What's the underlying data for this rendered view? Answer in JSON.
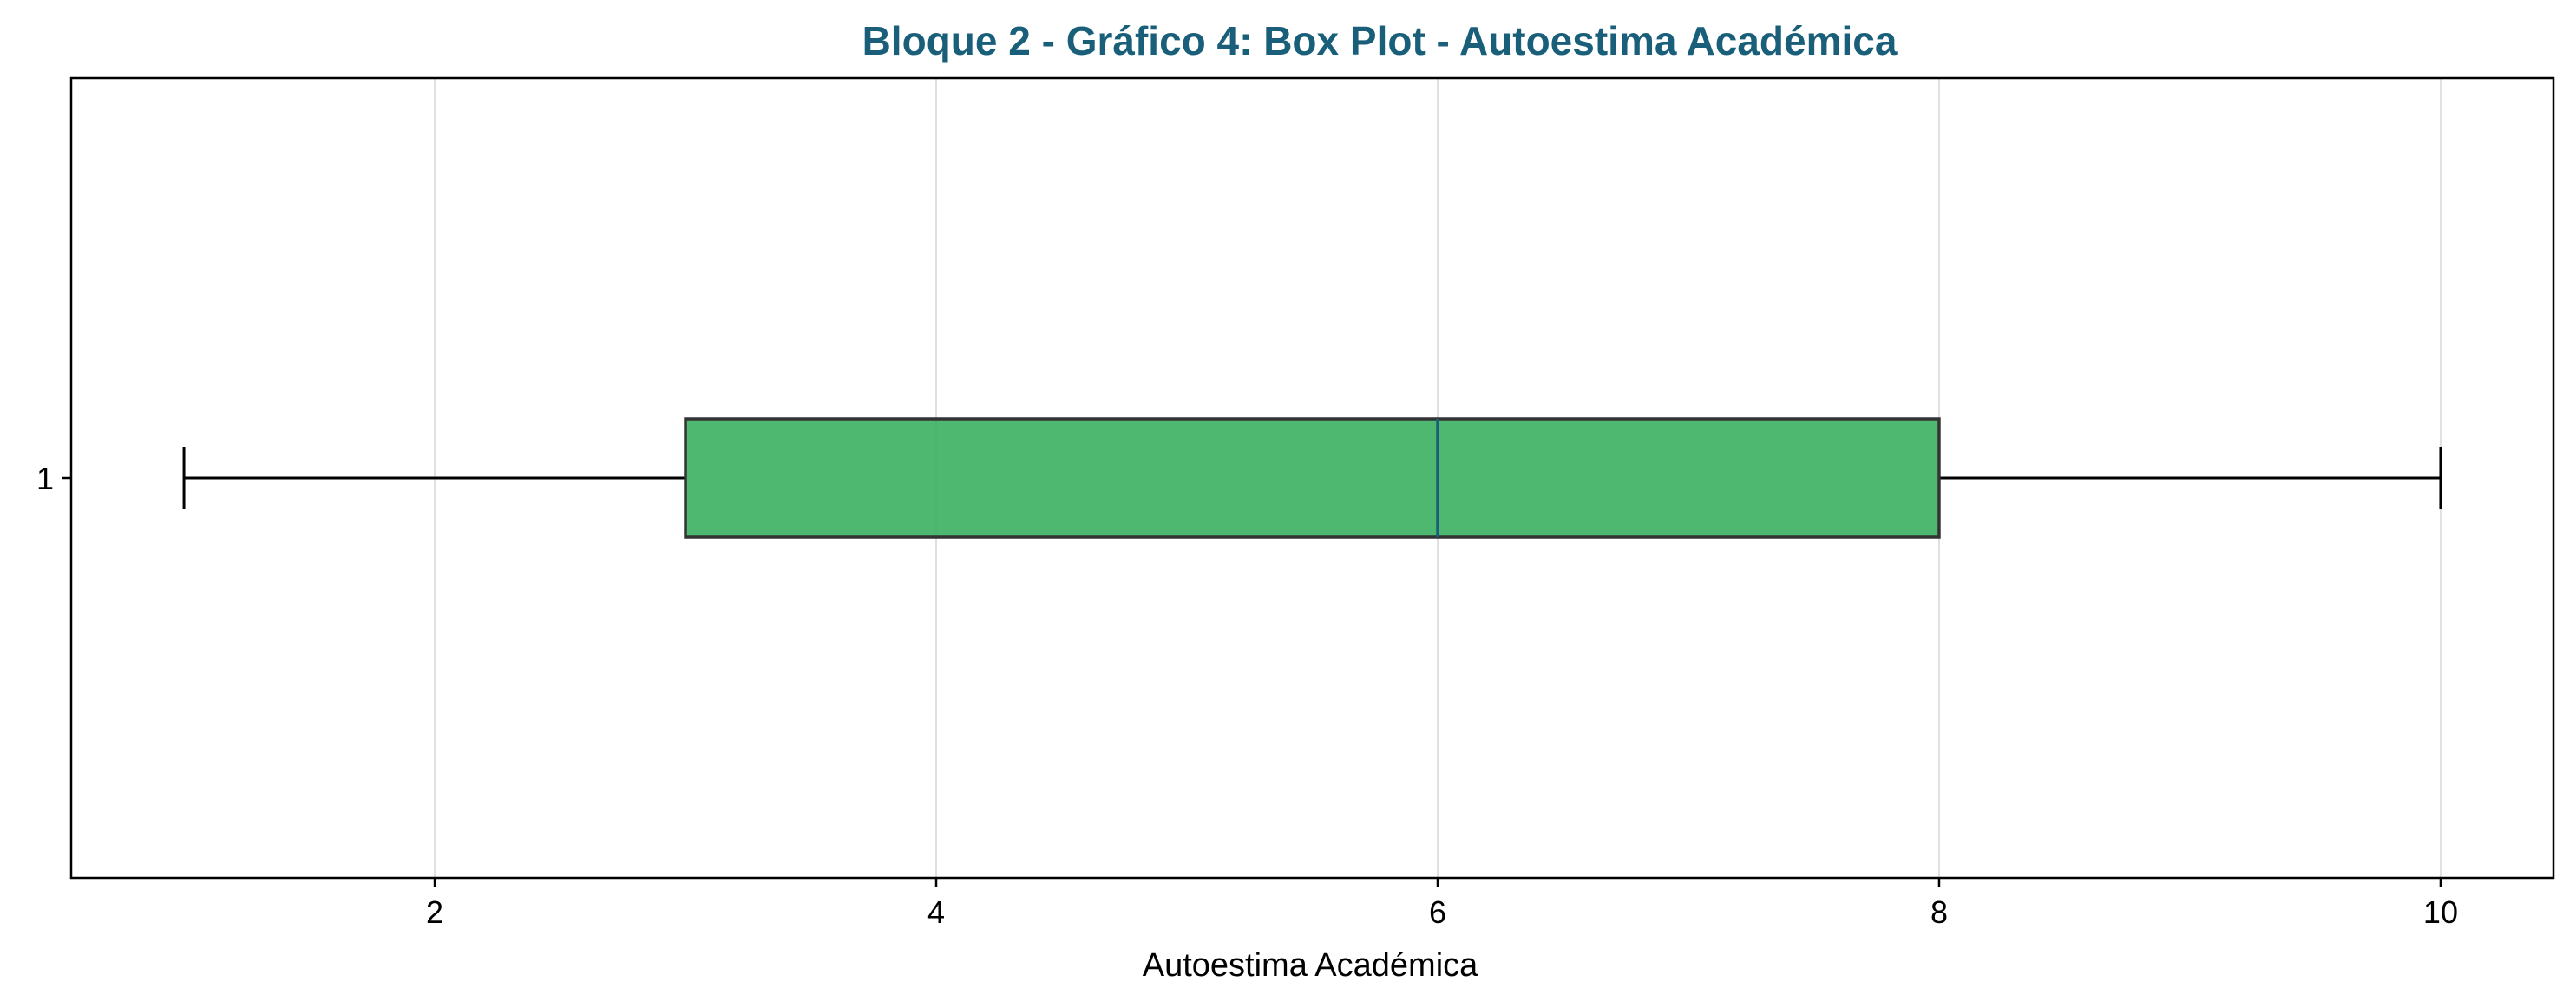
{
  "chart_data": {
    "type": "boxplot",
    "title": "Bloque 2 - Gráfico 4: Box Plot - Autoestima Académica",
    "xlabel": "Autoestima Académica",
    "ylabel": "",
    "orientation": "horizontal",
    "xlim": [
      0.55,
      10.45
    ],
    "xticks": [
      2,
      4,
      6,
      8,
      10
    ],
    "xtick_labels": [
      "2",
      "4",
      "6",
      "8",
      "10"
    ],
    "grid": "vertical",
    "categories": [
      "1"
    ],
    "boxes": [
      {
        "category": "1",
        "whisker_low": 1,
        "q1": 3,
        "median": 6,
        "q3": 8,
        "whisker_high": 10
      }
    ],
    "colors": {
      "title": "#1a5f7a",
      "box_fill": "#3cb061",
      "box_edge": "#333333",
      "median": "#1a5f7a",
      "whisker": "#000000",
      "grid": "#e0e0e0",
      "frame": "#000000"
    }
  }
}
